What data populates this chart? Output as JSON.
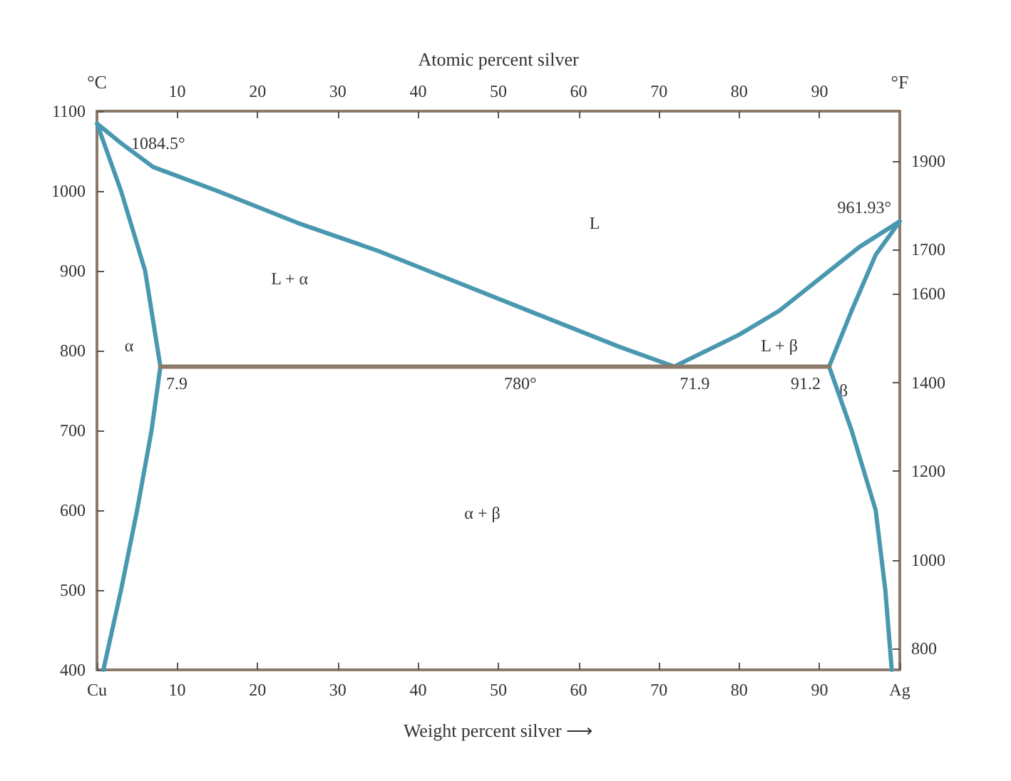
{
  "chart_data": {
    "type": "line",
    "xlabel": "Weight percent silver ⟶",
    "x2label": "Atomic percent silver",
    "ylabel": "°C",
    "y2label": "°F",
    "xlim": [
      0,
      100
    ],
    "xticks": [
      {
        "value": 0,
        "label": "Cu"
      },
      10,
      20,
      30,
      40,
      50,
      60,
      70,
      80,
      90,
      {
        "value": 100,
        "label": "Ag"
      }
    ],
    "x2lim": [
      0,
      100
    ],
    "x2ticks": [
      10,
      20,
      30,
      40,
      50,
      60,
      70,
      80,
      90
    ],
    "ylim": [
      400,
      1100
    ],
    "yticks": [
      400,
      500,
      600,
      700,
      800,
      900,
      1000,
      1100
    ],
    "y2lim": [
      752,
      2012
    ],
    "y2ticks": [
      800,
      1000,
      1200,
      1400,
      1600,
      1700,
      1900
    ],
    "grid": false,
    "marker": "none",
    "line_style": "solid",
    "series": [
      {
        "color": "#4a98b0",
        "x": [
          99,
          98.2,
          97,
          95.5,
          94,
          91.2,
          94,
          97,
          100,
          95,
          90,
          85,
          80,
          71.9,
          65,
          55,
          45,
          35,
          25,
          15,
          7,
          3,
          0,
          3,
          6,
          7.9,
          6.8,
          5,
          3,
          0.8
        ],
        "values": [
          400,
          500,
          600,
          650,
          700,
          780,
          850,
          920,
          961.93,
          930,
          890,
          850,
          820,
          780,
          805,
          845,
          885,
          925,
          960,
          1000,
          1030,
          1060,
          1084.5,
          1000,
          900,
          780,
          700,
          600,
          500,
          400
        ]
      },
      {
        "color": "#8c7b6b",
        "x": [
          7.9,
          91.2
        ],
        "values": [
          780,
          780
        ]
      }
    ],
    "annotations": [
      {
        "text": "1084.5°",
        "x": 0,
        "y": 1084.5
      },
      {
        "text": "961.93°",
        "x": 100,
        "y": 961.93
      },
      {
        "text": "7.9",
        "x": 7.9,
        "y": 780
      },
      {
        "text": "71.9",
        "x": 71.9,
        "y": 780
      },
      {
        "text": "91.2",
        "x": 91.2,
        "y": 780
      },
      {
        "text": "780°",
        "x": 50,
        "y": 780
      },
      "L",
      "L + α",
      "α",
      "L + β",
      "β",
      "α + β"
    ]
  }
}
